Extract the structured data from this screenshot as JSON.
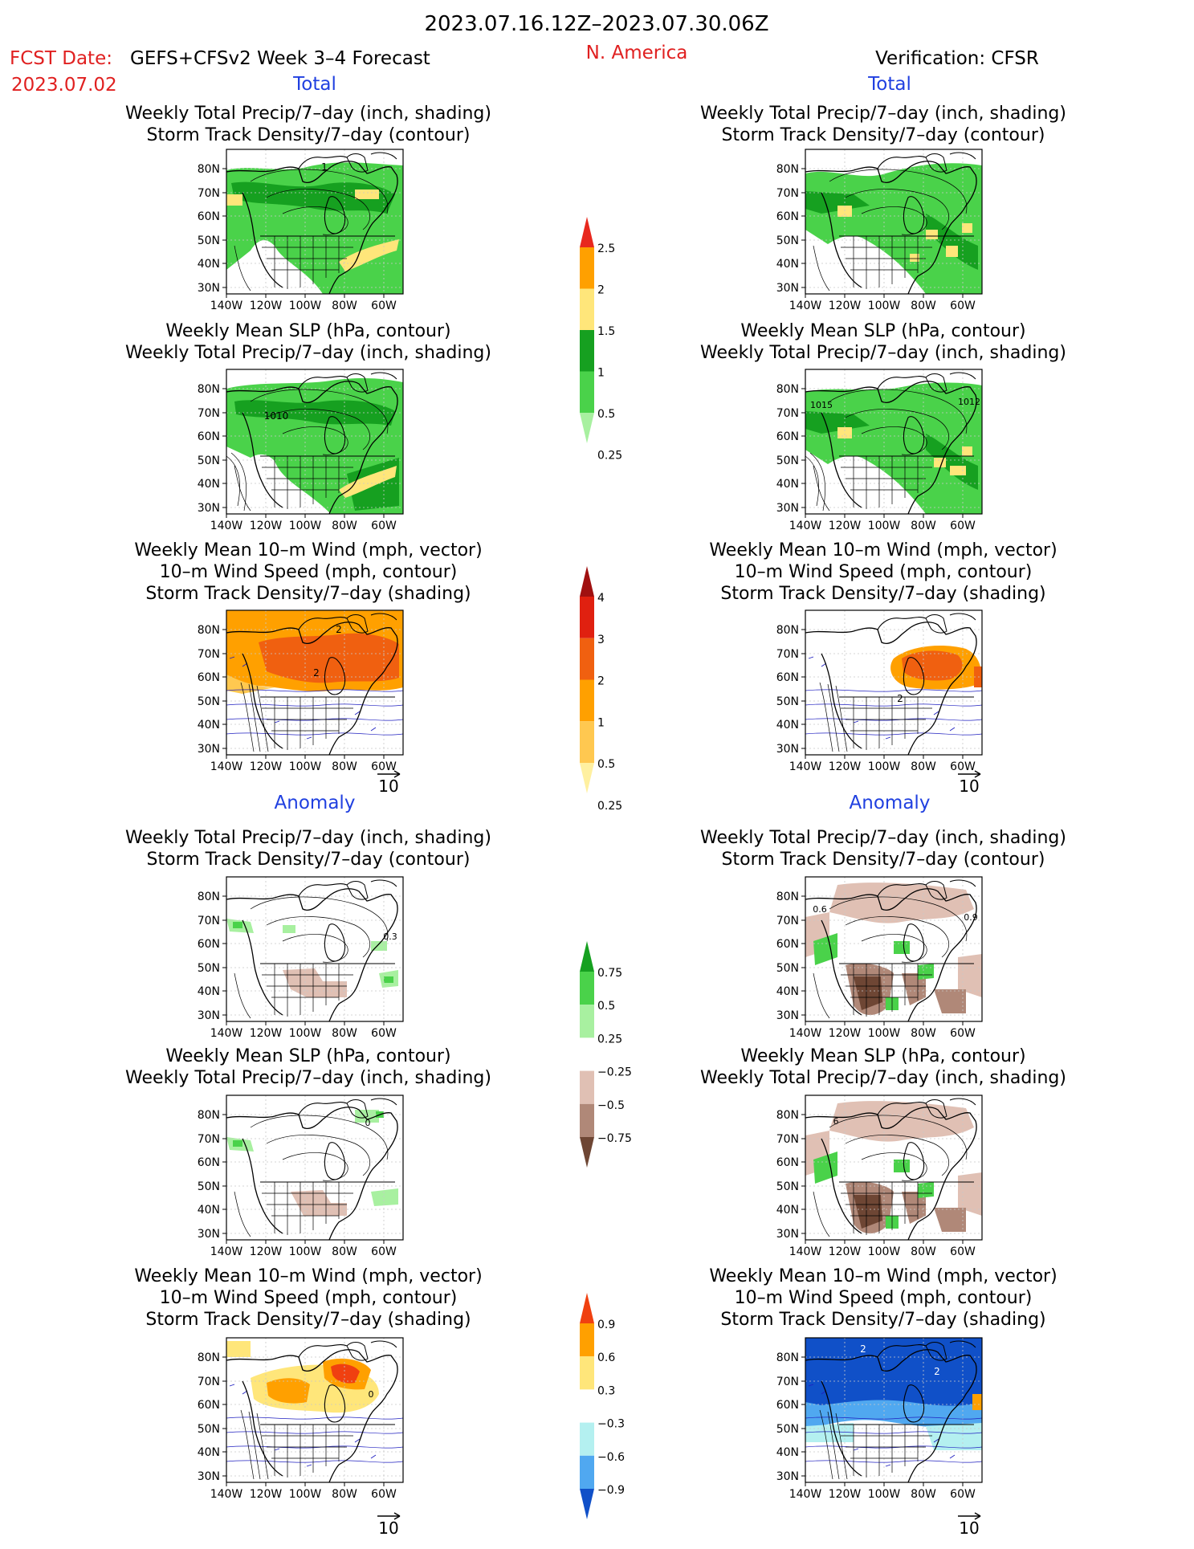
{
  "header": {
    "date_range": "2023.07.16.12Z–2023.07.30.06Z",
    "fcst_label": "FCST Date:",
    "fcst_date": "2023.07.02",
    "model": "GEFS+CFSv2 Week 3–4 Forecast",
    "region": "N. America",
    "verification": "Verification: CFSR",
    "total_label": "Total",
    "anomaly_label": "Anomaly"
  },
  "titles": {
    "precip_storm": [
      "Weekly Total Precip/7–day (inch, shading)",
      "Storm Track Density/7–day (contour)"
    ],
    "slp_precip": [
      "Weekly Mean SLP (hPa, contour)",
      "Weekly Total Precip/7–day (inch, shading)"
    ],
    "wind_storm": [
      "Weekly Mean 10–m Wind (mph, vector)",
      "10–m Wind Speed (mph, contour)",
      "Storm Track Density/7–day (shading)"
    ]
  },
  "axes": {
    "lat_ticks": [
      "80N",
      "70N",
      "60N",
      "50N",
      "40N",
      "30N"
    ],
    "lon_ticks": [
      "140W",
      "120W",
      "100W",
      "80W",
      "60W"
    ]
  },
  "vector_reference": "10",
  "map_labels": {
    "t_fc_precip": "1",
    "t_fc_slp": "1010",
    "t_vf_slp_a": "1015",
    "t_vf_slp_b": "1012",
    "t_fc_wind_a": "2",
    "t_fc_wind_b": "2",
    "t_vf_wind": "2",
    "a_fc_precip": "0.3",
    "a_vf_precip_a": "0.6",
    "a_vf_precip_b": "0.9",
    "a_fc_slp": "0",
    "a_vf_slp": "6",
    "a_fc_wind": "0",
    "a_vf_wind_a": "2",
    "a_vf_wind_b": "2"
  },
  "colorbars": {
    "total_precip": {
      "labels": [
        "2.5",
        "2",
        "1.5",
        "1",
        "0.5",
        "0.25"
      ],
      "colors": [
        "#e8281e",
        "#ffa000",
        "#ffe67a",
        "#16a020",
        "#4ad24a",
        "#a8f0a0"
      ]
    },
    "total_storm": {
      "labels": [
        "4",
        "3",
        "2",
        "1",
        "0.5",
        "0.25"
      ],
      "colors": [
        "#a01010",
        "#e02010",
        "#f06010",
        "#ffa000",
        "#ffc850",
        "#fff0a0"
      ]
    },
    "anom_precip": {
      "labels": [
        "0.75",
        "0.5",
        "0.25",
        "−0.25",
        "−0.5",
        "−0.75"
      ],
      "colors": [
        "#16a020",
        "#4ad24a",
        "#a8f0a0",
        "#ffffff",
        "#e0c0b4",
        "#b08878",
        "#6e4634"
      ]
    },
    "anom_storm": {
      "labels": [
        "0.9",
        "0.6",
        "0.3",
        "−0.3",
        "−0.6",
        "−0.9"
      ],
      "colors": [
        "#f04010",
        "#ffa000",
        "#ffe67a",
        "#ffffff",
        "#b4f0f0",
        "#50a8f0",
        "#1050c8"
      ]
    }
  }
}
